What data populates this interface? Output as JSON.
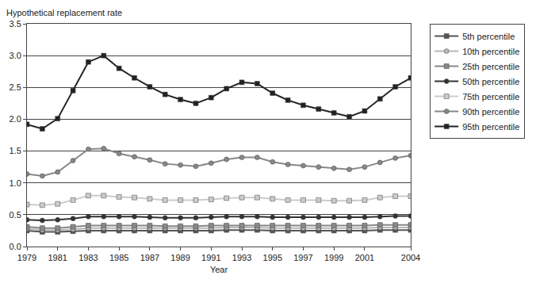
{
  "chart_data": {
    "type": "line",
    "y_label": "Hypothetical replacement rate",
    "x_label": "Year",
    "x": [
      1979,
      1980,
      1981,
      1982,
      1983,
      1984,
      1985,
      1986,
      1987,
      1988,
      1989,
      1990,
      1991,
      1992,
      1993,
      1994,
      1995,
      1996,
      1997,
      1998,
      1999,
      2000,
      2001,
      2002,
      2003,
      2004
    ],
    "series": [
      {
        "name": "5th percentile",
        "color": "#555555",
        "marker": "square",
        "values": [
          0.25,
          0.23,
          0.23,
          0.24,
          0.25,
          0.25,
          0.25,
          0.25,
          0.25,
          0.25,
          0.25,
          0.25,
          0.25,
          0.26,
          0.26,
          0.26,
          0.25,
          0.25,
          0.25,
          0.25,
          0.25,
          0.25,
          0.25,
          0.26,
          0.26,
          0.26
        ]
      },
      {
        "name": "10th percentile",
        "color": "#b8b8b8",
        "marker": "circle",
        "values": [
          0.28,
          0.26,
          0.26,
          0.27,
          0.29,
          0.29,
          0.29,
          0.29,
          0.29,
          0.29,
          0.29,
          0.29,
          0.29,
          0.3,
          0.3,
          0.3,
          0.29,
          0.29,
          0.29,
          0.29,
          0.29,
          0.29,
          0.29,
          0.3,
          0.3,
          0.3
        ]
      },
      {
        "name": "25th percentile",
        "color": "#888888",
        "marker": "square",
        "values": [
          0.31,
          0.29,
          0.29,
          0.31,
          0.33,
          0.33,
          0.33,
          0.33,
          0.33,
          0.32,
          0.32,
          0.32,
          0.33,
          0.33,
          0.33,
          0.33,
          0.33,
          0.33,
          0.33,
          0.33,
          0.33,
          0.33,
          0.33,
          0.34,
          0.34,
          0.34
        ]
      },
      {
        "name": "50th percentile",
        "color": "#333333",
        "marker": "circle",
        "values": [
          0.42,
          0.41,
          0.42,
          0.44,
          0.47,
          0.47,
          0.47,
          0.47,
          0.46,
          0.45,
          0.45,
          0.45,
          0.46,
          0.47,
          0.47,
          0.47,
          0.46,
          0.46,
          0.46,
          0.46,
          0.46,
          0.46,
          0.46,
          0.47,
          0.48,
          0.48
        ]
      },
      {
        "name": "75th percentile",
        "color": "#cccccc",
        "marker": "square",
        "values": [
          0.66,
          0.65,
          0.67,
          0.73,
          0.8,
          0.8,
          0.78,
          0.77,
          0.75,
          0.73,
          0.73,
          0.73,
          0.74,
          0.76,
          0.77,
          0.77,
          0.75,
          0.73,
          0.73,
          0.73,
          0.72,
          0.72,
          0.73,
          0.77,
          0.79,
          0.79
        ]
      },
      {
        "name": "90th percentile",
        "color": "#888888",
        "marker": "circle",
        "values": [
          1.14,
          1.11,
          1.17,
          1.35,
          1.53,
          1.54,
          1.46,
          1.41,
          1.36,
          1.3,
          1.28,
          1.26,
          1.31,
          1.37,
          1.4,
          1.4,
          1.33,
          1.29,
          1.27,
          1.25,
          1.23,
          1.21,
          1.25,
          1.32,
          1.39,
          1.43
        ]
      },
      {
        "name": "95th percentile",
        "color": "#222222",
        "marker": "square",
        "values": [
          1.92,
          1.85,
          2.01,
          2.45,
          2.9,
          3.0,
          2.8,
          2.65,
          2.51,
          2.39,
          2.31,
          2.25,
          2.34,
          2.48,
          2.58,
          2.56,
          2.41,
          2.3,
          2.22,
          2.16,
          2.1,
          2.04,
          2.13,
          2.32,
          2.51,
          2.65
        ]
      }
    ],
    "xlim": [
      1979,
      2004
    ],
    "xticks": [
      1979,
      1981,
      1983,
      1985,
      1987,
      1989,
      1991,
      1993,
      1995,
      1997,
      1999,
      2001,
      2004
    ],
    "ylim": [
      0,
      3.5
    ],
    "yticks": [
      {
        "value": 0,
        "label": "0.0"
      },
      0.5,
      {
        "value": 1,
        "label": "1.0"
      },
      1.5,
      {
        "value": 2,
        "label": "2.0"
      },
      2.5,
      {
        "value": 3,
        "label": "3.0"
      },
      3.5
    ],
    "grid": true,
    "legend": "right"
  }
}
